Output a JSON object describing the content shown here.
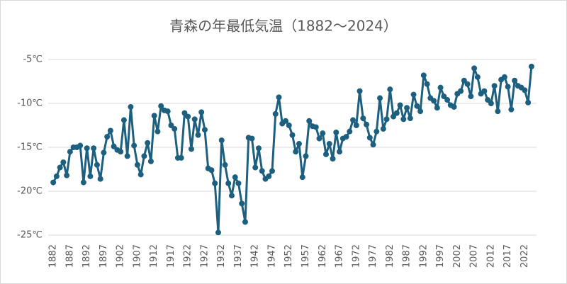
{
  "chart_data": {
    "type": "line",
    "title": "青森の年最低気温（1882～2024）",
    "x": [
      1882,
      1883,
      1884,
      1885,
      1886,
      1887,
      1888,
      1889,
      1890,
      1891,
      1892,
      1893,
      1894,
      1895,
      1896,
      1897,
      1898,
      1899,
      1900,
      1901,
      1902,
      1903,
      1904,
      1905,
      1906,
      1907,
      1908,
      1909,
      1910,
      1911,
      1912,
      1913,
      1914,
      1915,
      1916,
      1917,
      1918,
      1919,
      1920,
      1921,
      1922,
      1923,
      1924,
      1925,
      1926,
      1927,
      1928,
      1929,
      1930,
      1931,
      1932,
      1933,
      1934,
      1935,
      1936,
      1937,
      1938,
      1939,
      1940,
      1941,
      1942,
      1943,
      1944,
      1945,
      1946,
      1947,
      1948,
      1949,
      1950,
      1951,
      1952,
      1953,
      1954,
      1955,
      1956,
      1957,
      1958,
      1959,
      1960,
      1961,
      1962,
      1963,
      1964,
      1965,
      1966,
      1967,
      1968,
      1969,
      1970,
      1971,
      1972,
      1973,
      1974,
      1975,
      1976,
      1977,
      1978,
      1979,
      1980,
      1981,
      1982,
      1983,
      1984,
      1985,
      1986,
      1987,
      1988,
      1989,
      1990,
      1991,
      1992,
      1993,
      1994,
      1995,
      1996,
      1997,
      1998,
      1999,
      2000,
      2001,
      2002,
      2003,
      2004,
      2005,
      2006,
      2007,
      2008,
      2009,
      2010,
      2011,
      2012,
      2013,
      2014,
      2015,
      2016,
      2017,
      2018,
      2019,
      2020,
      2021,
      2022,
      2023,
      2024
    ],
    "values": [
      -19.0,
      -18.3,
      -17.3,
      -16.7,
      -18.2,
      -15.5,
      -15.0,
      -15.0,
      -14.8,
      -19.0,
      -15.1,
      -18.3,
      -15.1,
      -17.0,
      -18.6,
      -15.6,
      -13.8,
      -13.1,
      -14.9,
      -15.3,
      -15.5,
      -11.9,
      -16.0,
      -10.4,
      -14.8,
      -17.0,
      -18.1,
      -16.0,
      -14.5,
      -16.6,
      -11.4,
      -13.2,
      -10.3,
      -10.8,
      -10.9,
      -12.5,
      -12.9,
      -16.2,
      -16.2,
      -11.1,
      -11.5,
      -15.2,
      -11.8,
      -13.6,
      -11.0,
      -13.0,
      -17.4,
      -17.6,
      -19.1,
      -24.7,
      -14.2,
      -17.0,
      -19.1,
      -20.5,
      -18.4,
      -19.1,
      -21.4,
      -23.5,
      -13.9,
      -14.0,
      -17.3,
      -15.1,
      -17.7,
      -18.6,
      -18.3,
      -17.7,
      -11.2,
      -9.3,
      -12.3,
      -12.0,
      -12.5,
      -13.6,
      -15.5,
      -14.6,
      -18.4,
      -16.0,
      -12.0,
      -12.6,
      -12.7,
      -14.0,
      -13.4,
      -15.8,
      -14.6,
      -16.3,
      -13.3,
      -15.5,
      -14.0,
      -13.8,
      -13.2,
      -11.9,
      -12.5,
      -8.6,
      -11.7,
      -12.4,
      -13.9,
      -14.7,
      -13.2,
      -9.4,
      -12.9,
      -11.8,
      -8.4,
      -11.5,
      -11.1,
      -10.2,
      -11.8,
      -10.5,
      -11.7,
      -9.0,
      -10.3,
      -10.9,
      -6.8,
      -7.8,
      -9.4,
      -9.7,
      -10.5,
      -8.2,
      -9.2,
      -9.6,
      -10.2,
      -10.4,
      -8.9,
      -8.6,
      -7.4,
      -7.8,
      -9.2,
      -6.0,
      -7.0,
      -8.9,
      -8.6,
      -9.6,
      -10.0,
      -8.0,
      -10.9,
      -7.3,
      -7.0,
      -8.1,
      -10.7,
      -7.4,
      -8.0,
      -8.2,
      -8.5,
      -9.9,
      -5.8
    ],
    "color": "#1d5f7e",
    "xlim": [
      1880.5,
      2025.5
    ],
    "xticks": [
      1882,
      1887,
      1892,
      1897,
      1902,
      1907,
      1912,
      1917,
      1922,
      1927,
      1932,
      1937,
      1942,
      1947,
      1952,
      1957,
      1962,
      1967,
      1972,
      1977,
      1982,
      1987,
      1992,
      1997,
      2002,
      2007,
      2012,
      2017,
      2022
    ],
    "ylim": [
      -25,
      -5
    ],
    "yticks": [
      {
        "value": -25,
        "label": "-25℃"
      },
      {
        "value": -20,
        "label": "-20℃"
      },
      {
        "value": -15,
        "label": "-15℃"
      },
      {
        "value": -10,
        "label": "-10℃"
      },
      {
        "value": -5,
        "label": "-5℃"
      }
    ],
    "grid": true
  }
}
